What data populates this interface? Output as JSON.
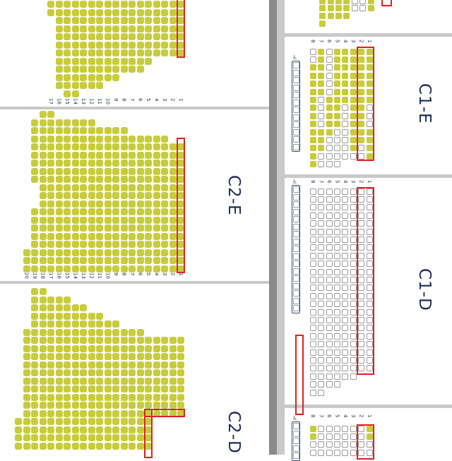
{
  "colors": {
    "occupied": "#c8cb3a",
    "available": "#ffffff",
    "selection": "#e02020",
    "label": "#1e2b55"
  },
  "legend": {
    "X": "occupied",
    "O": "available"
  },
  "sections": {
    "left_top": {
      "label": "",
      "row_labels": [
        "1",
        "2",
        "3",
        "4",
        "5",
        "6",
        "7",
        "8",
        "9",
        "10",
        "11",
        "12",
        "13",
        "14",
        "15",
        "16",
        "17"
      ],
      "grid": [
        "XXXXXXXXXXXXXXXXX",
        "XXXXXXXXXXXXXXXXX",
        "XXXXXXXXXXXXXXXX",
        "XXXXXXXXXXXXXXXX",
        "XXXXXXXXXXXXXXXX",
        "XXXXXXXXXXXXXXXX",
        "XXXXXXXXXXXXXXXX",
        "    XXXXXXXXXXXX",
        "     XXXXXXXXXXX",
        "        XXXXXXXX",
        "          XXXXXX",
        "             XX"
      ]
    },
    "c2e": {
      "label": "C2-E",
      "row_labels": [
        "1",
        "2",
        "3",
        "4",
        "5",
        "6",
        "7",
        "8",
        "9",
        "10",
        "11",
        "12",
        "13",
        "14",
        "15",
        "16",
        "17",
        "18",
        "19",
        "20"
      ],
      "grid": [
        "                XX",
        "           XXXXXXXX",
        "       XXXXXXXXXXXX",
        "  XXXXXXXXXXXXXXXXX",
        "XXXXXXXXXXXXXXXXXXX",
        "XXXXXXXXXXXXXXXXXXX",
        "XXXXXXXXXXXXXXXXXXX",
        "XXXXXXXXXXXXXXXXXXX",
        "XXXXXXXXXXXXXXXXXXX",
        "XXXXXXXXXXXXXXXXXX",
        "XXXXXXXXXXXXXXXXXX",
        "XXXXXXXXXXXXXXXXXX",
        "XXXXXXXXXXXXXXXXXXX",
        "XXXXXXXXXXXXXXXXXXX",
        "XXXXXXXXXXXXXXXXXXX",
        "XXXXXXXXXXXXXXXXXXX",
        "XXXXXXXXXXXXXXXXXXX",
        "XXXXXXXXXXXXXXXXXXXX",
        "XXXXXXXXXXXXXXXXXXXX",
        "XXXXXXXXXXXXXXXXXXXX"
      ]
    },
    "c2d": {
      "label": "C2-D",
      "row_labels": [],
      "grid": [
        "                 XX",
        "              XXXXX",
        "            XXXXXXX",
        "          XXXXXXXXX",
        "        XXXXXXXXXXX",
        "     XXXXXXXXXXXXXXX",
        "XXXXXXXXXXXXXXXXXXXX",
        "XXXXXXXXXXXXXXXXXXXX",
        "XXXXXXXXXXXXXXXXXXXX",
        "XXXXXXXXXXXXXXXXXXXX",
        "XXXXXXXXXXXXXXXXXXXX",
        "XXXXXXXXXXXXXXXXXXXX",
        "XXXXXXXXXXXXXXXXXXXX",
        "XXXXXXXXXXXXXXXXXXXX",
        "XXXXXXXXXXXXXXXXXXXX",
        "XXXXXXXXXXXXXXXXXXXX",
        "    XXXXXXXXXXXXXXXXX",
        "    XXXXXXXXXXXXXXXXX",
        "    XXXXXXXXXXXXXXXXX",
        "    XXXXXXXXXXXXXXXXX"
      ]
    },
    "right_top": {
      "label": "",
      "row_labels": [],
      "grid": [
        "XOOXXXX",
        "XOOXXXX",
        "   XXXX",
        "      X"
      ]
    },
    "c1e": {
      "label": "C1-E",
      "row_labels": [
        "1",
        "2",
        "3",
        "4",
        "5",
        "6",
        "7",
        "8"
      ],
      "grid": [
        "XXXXXOXO",
        "XXXXXOXO",
        "XXXXXOXX",
        "XXXXXOXX",
        "XXXXXOXX",
        "XXXXXOXX",
        "XXXXXXOX",
        "OXXOXXOX",
        "OXXOXXOX",
        "OXXOXXOX",
        "XXXOOXXX",
        "XXXOOOXX",
        "XOXOOOXX",
        "XOOOOOOX",
        "    OOOX"
      ]
    },
    "c1d": {
      "label": "C1-D",
      "row_labels": [
        "1",
        "2",
        "3",
        "4",
        "5",
        "6",
        "7",
        "8"
      ],
      "grid": [
        "OOOOOOOO",
        "OOOOOOOO",
        "OOOOOOOO",
        "OOOOOOOO",
        "OOOOOOOO",
        "OOOOOOOO",
        "OOOOOOOO",
        "OOOOOOOO",
        "OOOOOOOO",
        "OOOOOOOO",
        "OOOOOOOO",
        "OOOOOOOO",
        "OOOOOOOO",
        "OOOOOOOO",
        "OOOOOOOO",
        "OOOOOOOO",
        "OOOOOOOO",
        "OOOOOOOO",
        "OOOOOOOO",
        "OOOOOOOO",
        "OOOOOOOO",
        "OOOOOOOO",
        "OOOOOOOO",
        "  OOOOOO",
        "    OOOO",
        "      OO"
      ]
    },
    "right_bottom": {
      "label": "",
      "row_labels": [
        "1",
        "2",
        "3",
        "4",
        "5",
        "6",
        "7",
        "8"
      ],
      "grid": [
        "XOOOOOOX",
        "XOOOOOOX",
        "OOOOOOOO",
        "OOOOOOOO"
      ]
    }
  }
}
